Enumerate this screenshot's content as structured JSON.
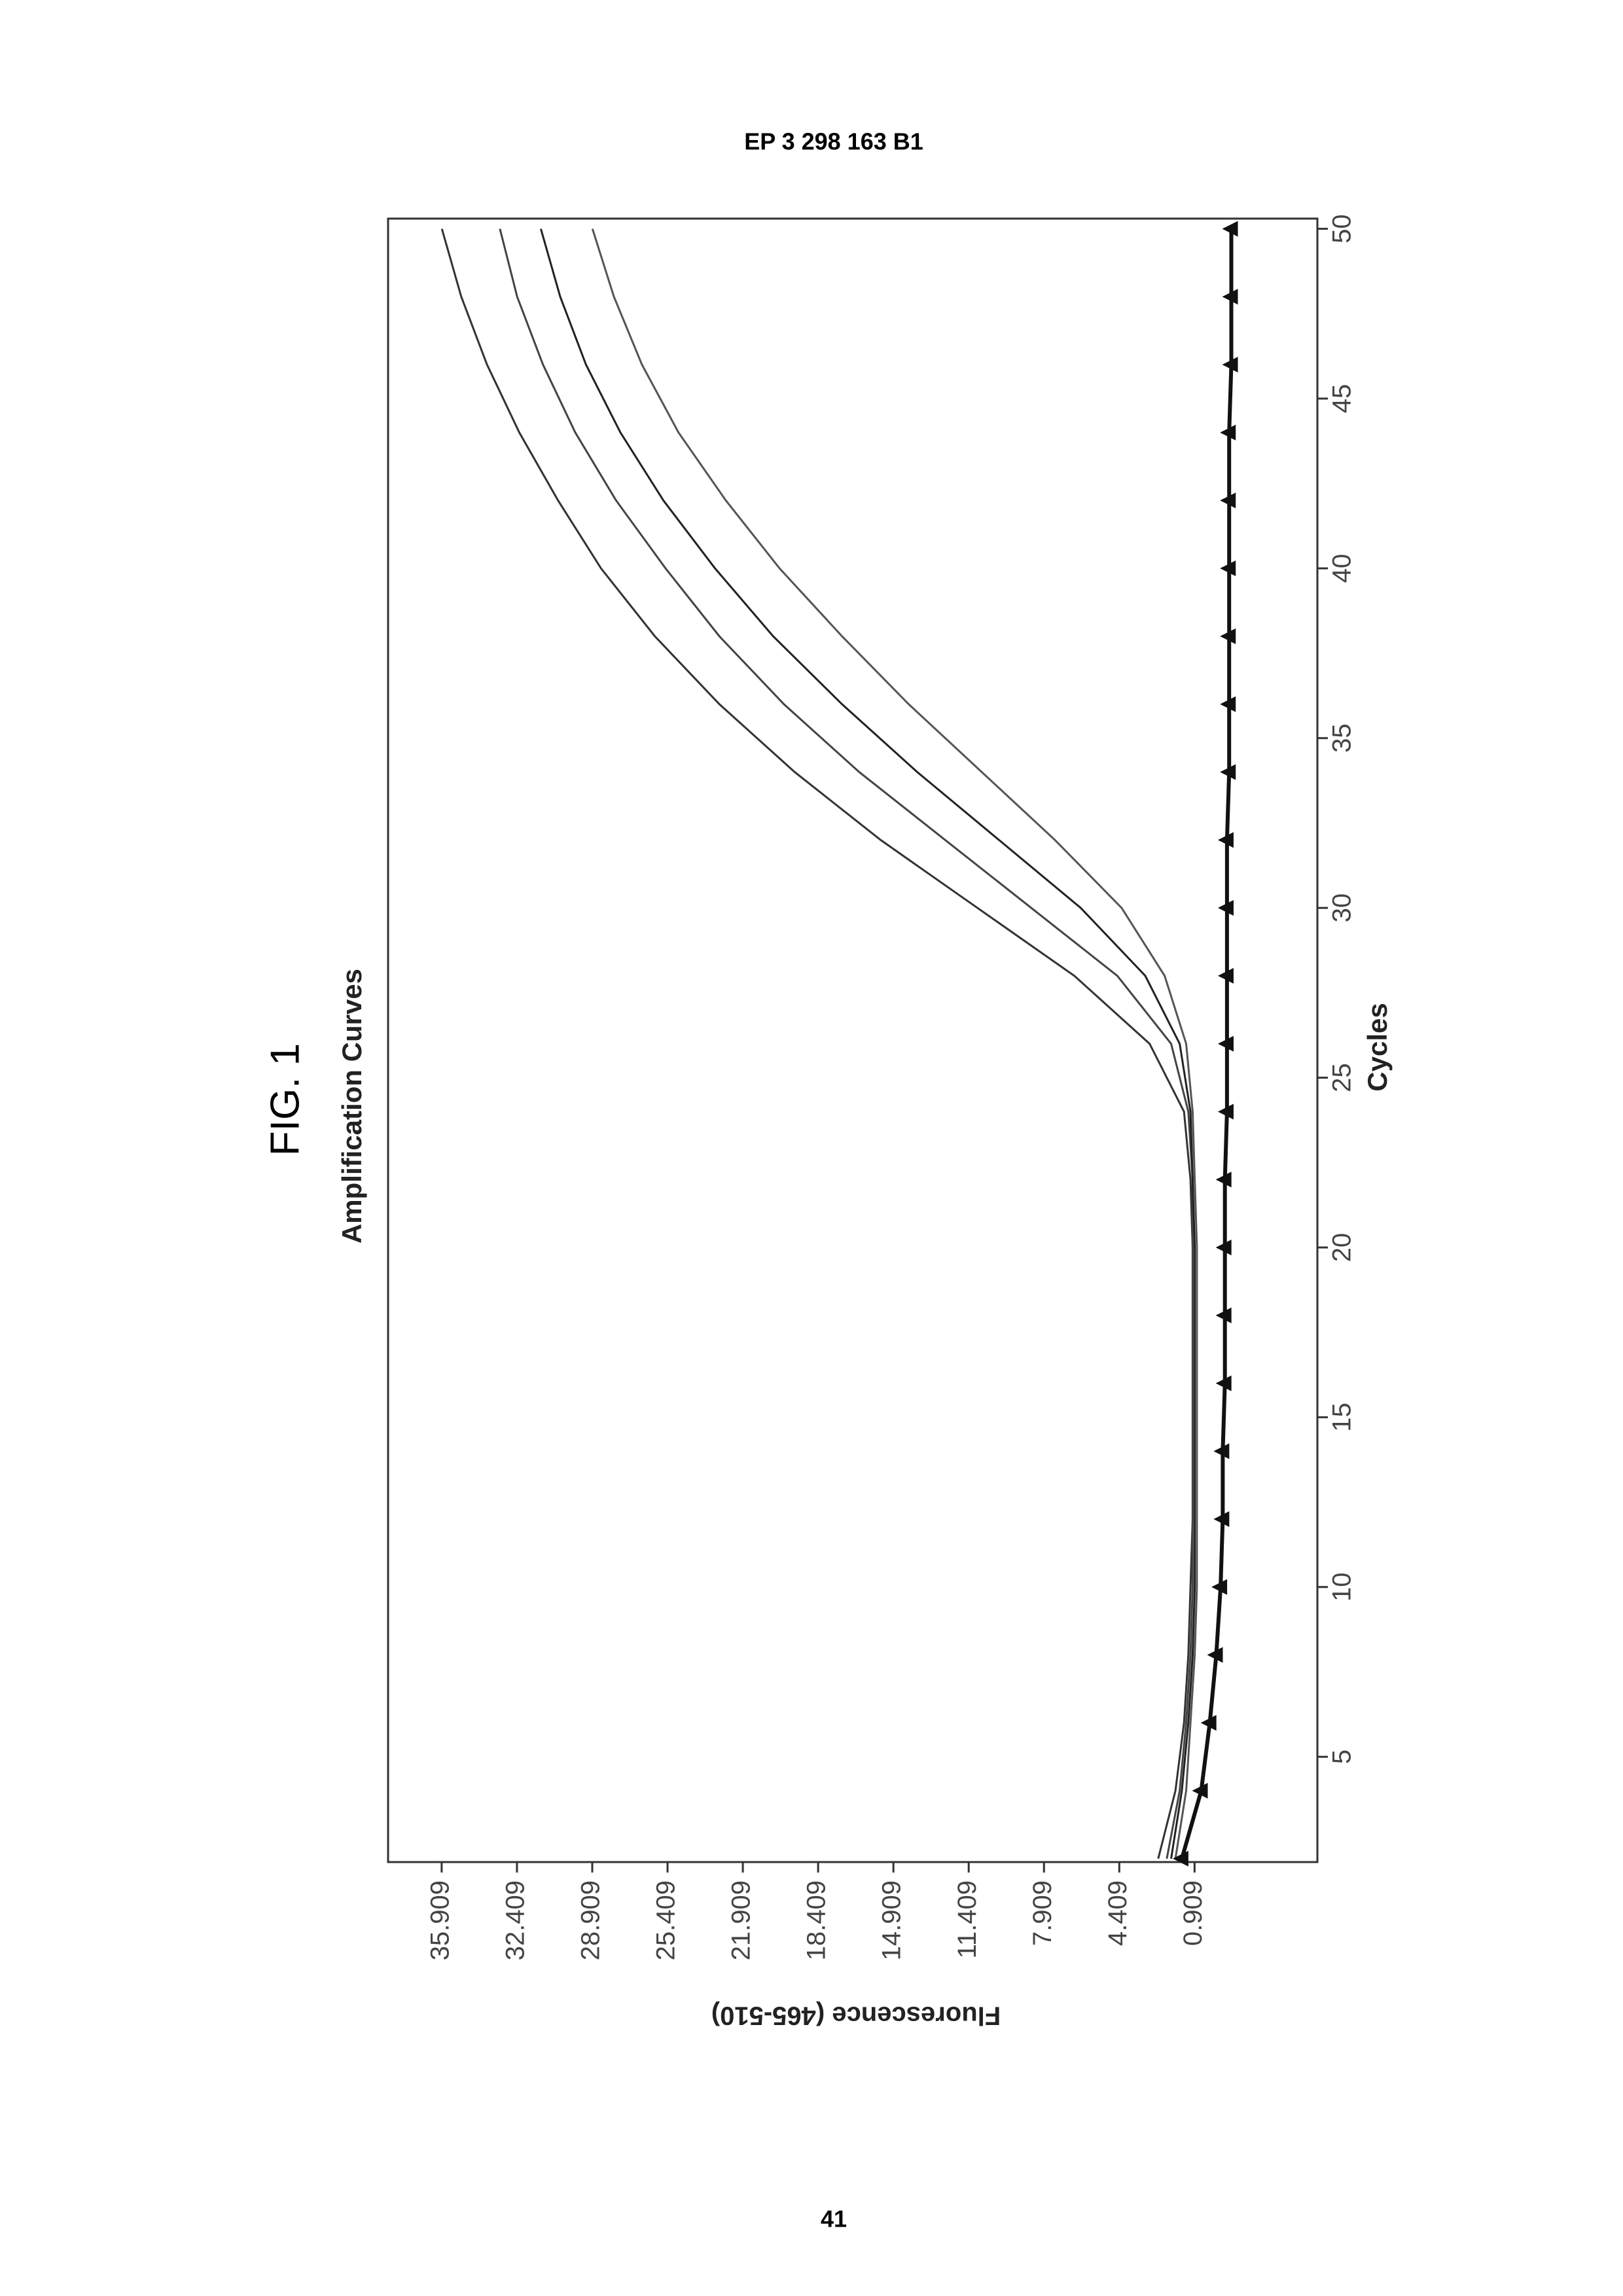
{
  "header": "EP 3 298 163 B1",
  "figure_label": "FIG. 1",
  "page_number": "41",
  "chart_data": {
    "type": "line",
    "title": "Amplification Curves",
    "x_label": "Cycles",
    "y_label": "Fluorescence (465-510)",
    "x": [
      2,
      4,
      6,
      8,
      10,
      12,
      14,
      16,
      18,
      20,
      22,
      24,
      26,
      28,
      30,
      32,
      34,
      36,
      38,
      40,
      42,
      44,
      46,
      48,
      50
    ],
    "series": [
      {
        "color": "#333333",
        "values": [
          2.6,
          1.8,
          1.4,
          1.2,
          1.1,
          1.0,
          1.0,
          1.0,
          1.0,
          1.0,
          1.1,
          1.4,
          3.0,
          6.5,
          11.0,
          15.5,
          19.5,
          23.0,
          26.0,
          28.5,
          30.5,
          32.3,
          33.8,
          35.0,
          35.9
        ]
      },
      {
        "color": "#444444",
        "values": [
          2.2,
          1.6,
          1.3,
          1.1,
          1.0,
          1.0,
          1.0,
          1.0,
          1.0,
          1.0,
          1.0,
          1.2,
          2.0,
          4.5,
          8.5,
          12.5,
          16.5,
          20.0,
          23.0,
          25.5,
          27.8,
          29.7,
          31.2,
          32.4,
          33.2
        ]
      },
      {
        "color": "#222222",
        "values": [
          2.0,
          1.5,
          1.2,
          1.0,
          0.9,
          0.9,
          0.9,
          0.9,
          0.9,
          0.9,
          1.0,
          1.1,
          1.6,
          3.2,
          6.2,
          10.0,
          13.8,
          17.3,
          20.5,
          23.2,
          25.6,
          27.6,
          29.2,
          30.4,
          31.3
        ]
      },
      {
        "color": "#555555",
        "values": [
          1.8,
          1.3,
          1.1,
          0.9,
          0.8,
          0.8,
          0.8,
          0.8,
          0.8,
          0.8,
          0.9,
          1.0,
          1.3,
          2.3,
          4.3,
          7.4,
          10.8,
          14.2,
          17.3,
          20.2,
          22.7,
          24.9,
          26.6,
          27.9,
          28.9
        ]
      },
      {
        "color": "#111111",
        "marker": "triangle",
        "values": [
          1.5,
          0.6,
          0.2,
          -0.1,
          -0.3,
          -0.4,
          -0.4,
          -0.5,
          -0.5,
          -0.5,
          -0.5,
          -0.6,
          -0.6,
          -0.6,
          -0.6,
          -0.6,
          -0.7,
          -0.7,
          -0.7,
          -0.7,
          -0.7,
          -0.7,
          -0.8,
          -0.8,
          -0.8
        ]
      }
    ],
    "xlim": [
      1.9,
      50.3
    ],
    "ylim": [
      -4.8,
      38.4
    ],
    "xticks": [
      5,
      10,
      15,
      20,
      25,
      30,
      35,
      40,
      45,
      50
    ],
    "yticks": [
      0.909,
      4.409,
      7.909,
      11.409,
      14.909,
      18.409,
      21.909,
      25.409,
      28.909,
      32.409,
      35.909
    ],
    "rotation": -90
  }
}
